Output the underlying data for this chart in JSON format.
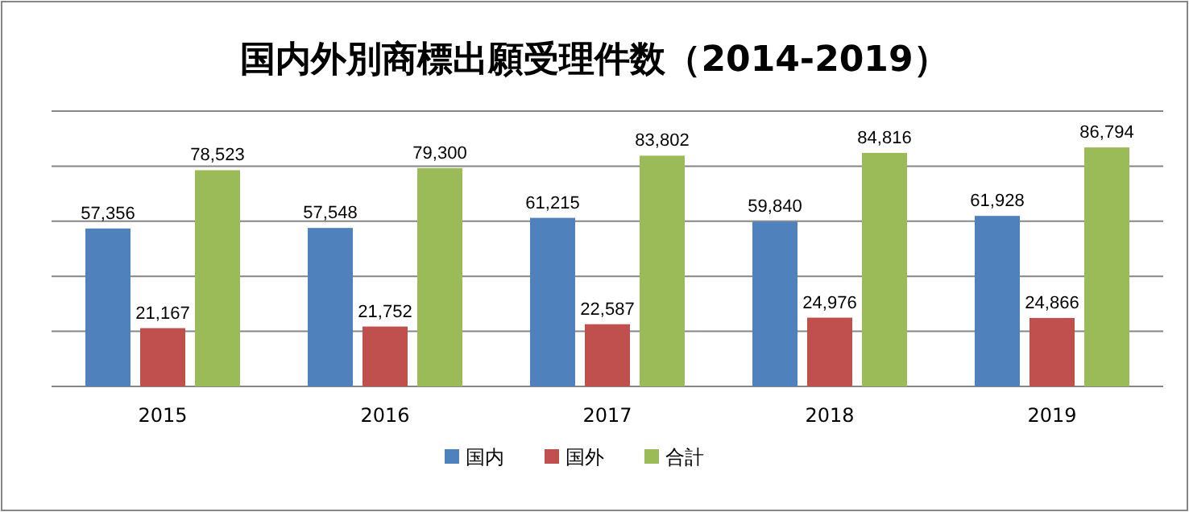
{
  "chart_data": {
    "type": "bar",
    "title": "国内外別商標出願受理件数（2014-2019）",
    "categories": [
      "2015",
      "2016",
      "2017",
      "2018",
      "2019"
    ],
    "series": [
      {
        "name": "国内",
        "color": "#4f81bd",
        "values": [
          57356,
          57548,
          61215,
          59840,
          61928
        ],
        "value_labels": [
          "57,356",
          "57,548",
          "61,215",
          "59,840",
          "61,928"
        ]
      },
      {
        "name": "国外",
        "color": "#c0504d",
        "values": [
          21167,
          21752,
          22587,
          24976,
          24866
        ],
        "value_labels": [
          "21,167",
          "21,752",
          "22,587",
          "24,976",
          "24,866"
        ]
      },
      {
        "name": "合計",
        "color": "#9bbb59",
        "values": [
          78523,
          79300,
          83802,
          84816,
          86794
        ],
        "value_labels": [
          "78,523",
          "79,300",
          "83,802",
          "84,816",
          "86,794"
        ]
      }
    ],
    "grid": "y",
    "legend": "bottom",
    "tick_labels": "x"
  }
}
